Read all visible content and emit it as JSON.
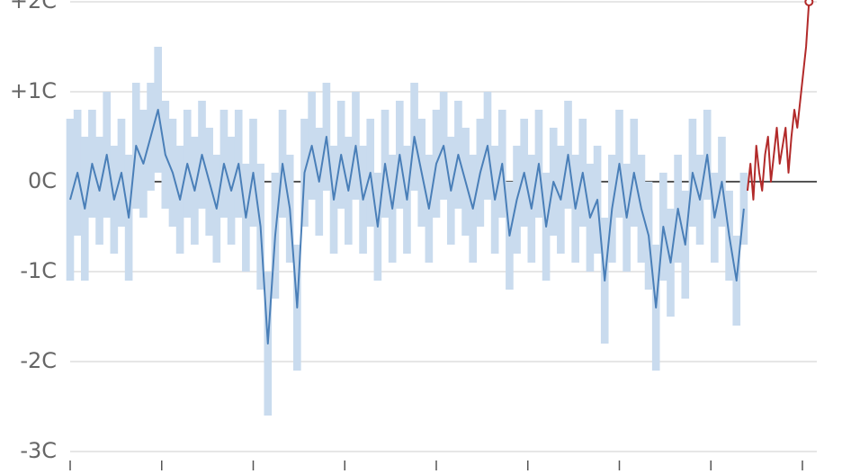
{
  "chart_data": {
    "type": "line",
    "ylim": [
      -3,
      2
    ],
    "xlim": [
      0,
      2030
    ],
    "yticks": [
      {
        "value": 2,
        "label": "+2C"
      },
      {
        "value": 1,
        "label": "+1C"
      },
      {
        "value": 0,
        "label": "0C"
      },
      {
        "value": -1,
        "label": "-1C"
      },
      {
        "value": -2,
        "label": "-2C"
      },
      {
        "value": -3,
        "label": "-3C"
      }
    ],
    "xticks": [
      0,
      250,
      500,
      750,
      1000,
      1250,
      1500,
      1750,
      2000
    ],
    "grid": true,
    "series": [
      {
        "color": "#4a7fb8",
        "band_color": "#c9dbee",
        "x": [
          0,
          20,
          40,
          60,
          80,
          100,
          120,
          140,
          160,
          180,
          200,
          220,
          240,
          260,
          280,
          300,
          320,
          340,
          360,
          380,
          400,
          420,
          440,
          460,
          480,
          500,
          520,
          540,
          560,
          580,
          600,
          620,
          640,
          660,
          680,
          700,
          720,
          740,
          760,
          780,
          800,
          820,
          840,
          860,
          880,
          900,
          920,
          940,
          960,
          980,
          1000,
          1020,
          1040,
          1060,
          1080,
          1100,
          1120,
          1140,
          1160,
          1180,
          1200,
          1220,
          1240,
          1260,
          1280,
          1300,
          1320,
          1340,
          1360,
          1380,
          1400,
          1420,
          1440,
          1460,
          1480,
          1500,
          1520,
          1540,
          1560,
          1580,
          1600,
          1620,
          1640,
          1660,
          1680,
          1700,
          1720,
          1740,
          1760,
          1780,
          1800,
          1820,
          1840
        ],
        "values": [
          -0.2,
          0.1,
          -0.3,
          0.2,
          -0.1,
          0.3,
          -0.2,
          0.1,
          -0.4,
          0.4,
          0.2,
          0.5,
          0.8,
          0.3,
          0.1,
          -0.2,
          0.2,
          -0.1,
          0.3,
          0.0,
          -0.3,
          0.2,
          -0.1,
          0.2,
          -0.4,
          0.1,
          -0.5,
          -1.8,
          -0.6,
          0.2,
          -0.3,
          -1.4,
          0.1,
          0.4,
          0.0,
          0.5,
          -0.2,
          0.3,
          -0.1,
          0.4,
          -0.2,
          0.1,
          -0.5,
          0.2,
          -0.3,
          0.3,
          -0.2,
          0.5,
          0.1,
          -0.3,
          0.2,
          0.4,
          -0.1,
          0.3,
          0.0,
          -0.3,
          0.1,
          0.4,
          -0.2,
          0.2,
          -0.6,
          -0.2,
          0.1,
          -0.3,
          0.2,
          -0.5,
          0.0,
          -0.2,
          0.3,
          -0.3,
          0.1,
          -0.4,
          -0.2,
          -1.1,
          -0.3,
          0.2,
          -0.4,
          0.1,
          -0.3,
          -0.6,
          -1.4,
          -0.5,
          -0.9,
          -0.3,
          -0.7,
          0.1,
          -0.2,
          0.3,
          -0.4,
          0.0,
          -0.6,
          -1.1,
          -0.3
        ],
        "error": [
          0.9,
          0.7,
          0.8,
          0.6,
          0.6,
          0.7,
          0.6,
          0.6,
          0.7,
          0.7,
          0.6,
          0.6,
          0.7,
          0.6,
          0.6,
          0.6,
          0.6,
          0.6,
          0.6,
          0.6,
          0.6,
          0.6,
          0.6,
          0.6,
          0.6,
          0.6,
          0.7,
          0.8,
          0.7,
          0.6,
          0.6,
          0.7,
          0.6,
          0.6,
          0.6,
          0.6,
          0.6,
          0.6,
          0.6,
          0.6,
          0.6,
          0.6,
          0.6,
          0.6,
          0.6,
          0.6,
          0.6,
          0.6,
          0.6,
          0.6,
          0.6,
          0.6,
          0.6,
          0.6,
          0.6,
          0.6,
          0.6,
          0.6,
          0.6,
          0.6,
          0.6,
          0.6,
          0.6,
          0.6,
          0.6,
          0.6,
          0.6,
          0.6,
          0.6,
          0.6,
          0.6,
          0.6,
          0.6,
          0.7,
          0.6,
          0.6,
          0.6,
          0.6,
          0.6,
          0.6,
          0.7,
          0.6,
          0.6,
          0.6,
          0.6,
          0.6,
          0.5,
          0.5,
          0.5,
          0.5,
          0.5,
          0.5,
          0.4
        ]
      },
      {
        "color": "#b22a2a",
        "x": [
          1850,
          1858,
          1866,
          1874,
          1882,
          1890,
          1898,
          1906,
          1914,
          1922,
          1930,
          1938,
          1946,
          1954,
          1962,
          1970,
          1978,
          1986,
          1994,
          2002,
          2010,
          2018
        ],
        "values": [
          -0.1,
          0.2,
          -0.2,
          0.4,
          0.1,
          -0.1,
          0.3,
          0.5,
          0.0,
          0.3,
          0.6,
          0.2,
          0.4,
          0.6,
          0.1,
          0.5,
          0.8,
          0.6,
          0.9,
          1.2,
          1.5,
          2.0
        ]
      }
    ]
  }
}
